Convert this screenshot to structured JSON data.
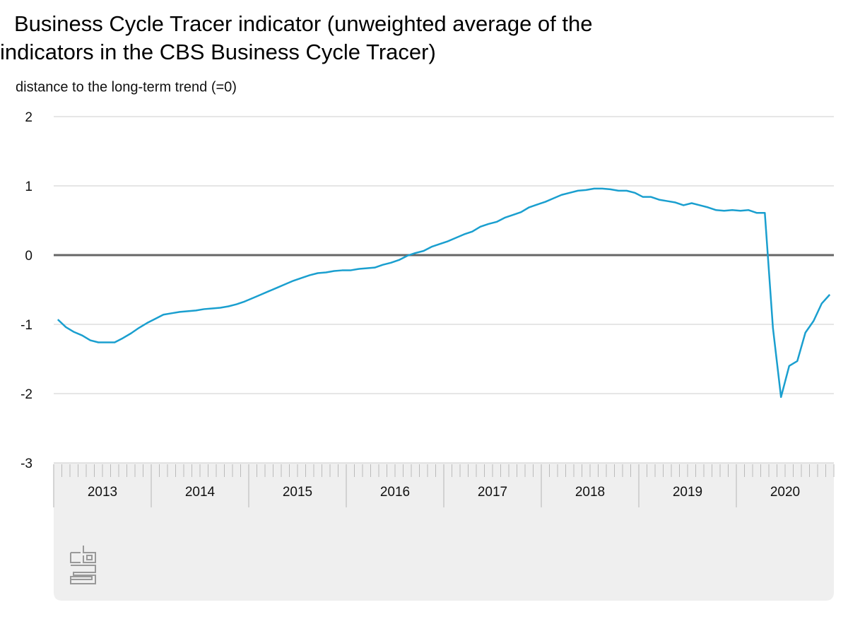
{
  "chart_data": {
    "type": "line",
    "title": "Business Cycle Tracer indicator (unweighted average of the indicators in the CBS Business Cycle Tracer)",
    "subtitle": "distance to the long-term trend (=0)",
    "color": "#1a9fcf",
    "x": [
      2013.042,
      2013.125,
      2013.208,
      2013.292,
      2013.375,
      2013.458,
      2013.542,
      2013.625,
      2013.708,
      2013.792,
      2013.875,
      2013.958,
      2014.042,
      2014.125,
      2014.208,
      2014.292,
      2014.375,
      2014.458,
      2014.542,
      2014.625,
      2014.708,
      2014.792,
      2014.875,
      2014.958,
      2015.042,
      2015.125,
      2015.208,
      2015.292,
      2015.375,
      2015.458,
      2015.542,
      2015.625,
      2015.708,
      2015.792,
      2015.875,
      2015.958,
      2016.042,
      2016.125,
      2016.208,
      2016.292,
      2016.375,
      2016.458,
      2016.542,
      2016.625,
      2016.708,
      2016.792,
      2016.875,
      2016.958,
      2017.042,
      2017.125,
      2017.208,
      2017.292,
      2017.375,
      2017.458,
      2017.542,
      2017.625,
      2017.708,
      2017.792,
      2017.875,
      2017.958,
      2018.042,
      2018.125,
      2018.208,
      2018.292,
      2018.375,
      2018.458,
      2018.542,
      2018.625,
      2018.708,
      2018.792,
      2018.875,
      2018.958,
      2019.042,
      2019.125,
      2019.208,
      2019.292,
      2019.375,
      2019.458,
      2019.542,
      2019.625,
      2019.708,
      2019.792,
      2019.875,
      2019.958,
      2020.042,
      2020.125,
      2020.208,
      2020.292,
      2020.375,
      2020.458,
      2020.542,
      2020.625,
      2020.708,
      2020.792,
      2020.875,
      2020.958
    ],
    "values": [
      -0.93,
      -1.04,
      -1.11,
      -1.16,
      -1.23,
      -1.26,
      -1.26,
      -1.26,
      -1.2,
      -1.13,
      -1.05,
      -0.98,
      -0.92,
      -0.86,
      -0.84,
      -0.82,
      -0.81,
      -0.8,
      -0.78,
      -0.77,
      -0.76,
      -0.74,
      -0.71,
      -0.67,
      -0.62,
      -0.57,
      -0.52,
      -0.47,
      -0.42,
      -0.37,
      -0.33,
      -0.29,
      -0.26,
      -0.25,
      -0.23,
      -0.22,
      -0.22,
      -0.2,
      -0.19,
      -0.18,
      -0.14,
      -0.11,
      -0.07,
      -0.01,
      0.03,
      0.06,
      0.12,
      0.16,
      0.2,
      0.25,
      0.3,
      0.34,
      0.41,
      0.45,
      0.48,
      0.54,
      0.58,
      0.62,
      0.69,
      0.73,
      0.77,
      0.82,
      0.87,
      0.9,
      0.93,
      0.94,
      0.96,
      0.96,
      0.95,
      0.93,
      0.93,
      0.9,
      0.84,
      0.84,
      0.8,
      0.78,
      0.76,
      0.72,
      0.75,
      0.72,
      0.69,
      0.65,
      0.64,
      0.65,
      0.64,
      0.65,
      0.61,
      0.61,
      -1.05,
      -2.05,
      -1.6,
      -1.53,
      -1.12,
      -0.95,
      -0.7,
      -0.57
    ],
    "xlim": [
      2013,
      2021
    ],
    "xticks": [
      {
        "value": 2013.5,
        "label": "2013"
      },
      {
        "value": 2014.5,
        "label": "2014"
      },
      {
        "value": 2015.5,
        "label": "2015"
      },
      {
        "value": 2016.5,
        "label": "2016"
      },
      {
        "value": 2017.5,
        "label": "2017"
      },
      {
        "value": 2018.5,
        "label": "2018"
      },
      {
        "value": 2019.5,
        "label": "2019"
      },
      {
        "value": 2020.5,
        "label": "2020"
      }
    ],
    "ylim": [
      -3,
      2
    ],
    "yticks": [
      -3,
      -2,
      -1,
      0,
      1,
      2
    ],
    "grid": true
  }
}
